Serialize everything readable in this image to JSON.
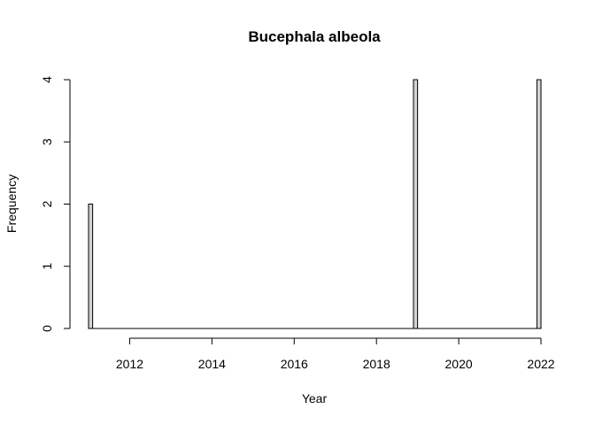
{
  "chart_data": {
    "type": "bar",
    "title": "Bucephala albeola",
    "xlabel": "Year",
    "ylabel": "Frequency",
    "xlim": [
      2011.0,
      2022.0
    ],
    "ylim": [
      0,
      4
    ],
    "x_ticks": [
      2012,
      2014,
      2016,
      2018,
      2020,
      2022
    ],
    "y_ticks": [
      0,
      1,
      2,
      3,
      4
    ],
    "bin_width": 0.1,
    "bars": [
      {
        "x": 2011.0,
        "value": 2
      },
      {
        "x": 2018.9,
        "value": 4
      },
      {
        "x": 2021.9,
        "value": 4
      }
    ],
    "grid": false,
    "bar_color": "#d3d3d3",
    "edge_color": "#000000"
  }
}
